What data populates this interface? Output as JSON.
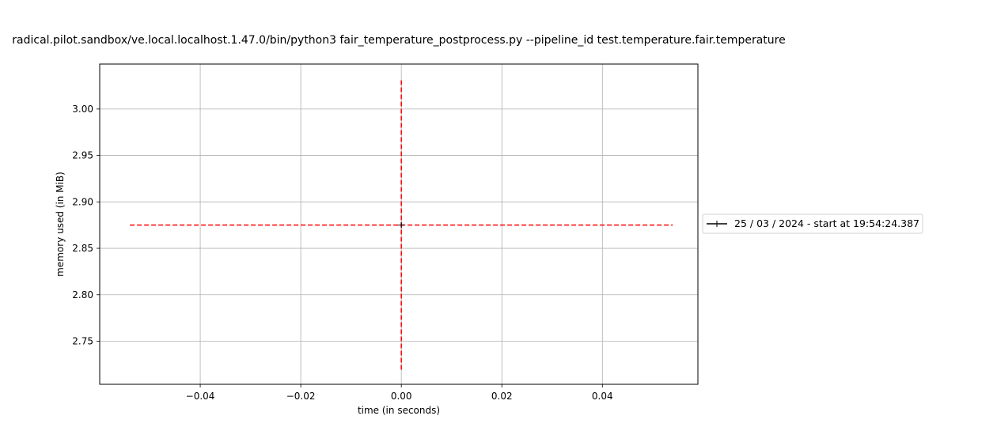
{
  "chart_data": {
    "type": "scatter",
    "title": "radical.pilot.sandbox/ve.local.localhost.1.47.0/bin/python3 fair_temperature_postprocess.py --pipeline_id test.temperature.fair.temperature",
    "xlabel": "time (in seconds)",
    "ylabel": "memory used (in MiB)",
    "xlim": [
      -0.06,
      0.059
    ],
    "ylim": [
      2.7036,
      3.0484
    ],
    "xticks": [
      -0.04,
      -0.02,
      0.0,
      0.02,
      0.04
    ],
    "xtick_labels": [
      "−0.04",
      "−0.02",
      "0.00",
      "0.02",
      "0.04"
    ],
    "yticks": [
      2.75,
      2.8,
      2.85,
      2.9,
      2.95,
      3.0
    ],
    "ytick_labels": [
      "2.75",
      "2.80",
      "2.85",
      "2.90",
      "2.95",
      "3.00"
    ],
    "grid": true,
    "legend_position": "center-right, outside",
    "series": [
      {
        "name": "25 / 03 / 2024 - start at 19:54:24.387",
        "color": "#000000",
        "marker": "+",
        "points": [
          {
            "x": 0.0,
            "y": 2.875
          }
        ]
      }
    ],
    "reference_lines": [
      {
        "orientation": "horizontal",
        "y": 2.875,
        "x_from": -0.054,
        "x_to": 0.054,
        "color": "#ff0000",
        "style": "dashed"
      },
      {
        "orientation": "vertical",
        "x": 0.0,
        "y_from": 2.7193,
        "y_to": 3.0327,
        "color": "#ff0000",
        "style": "dashed"
      }
    ]
  }
}
